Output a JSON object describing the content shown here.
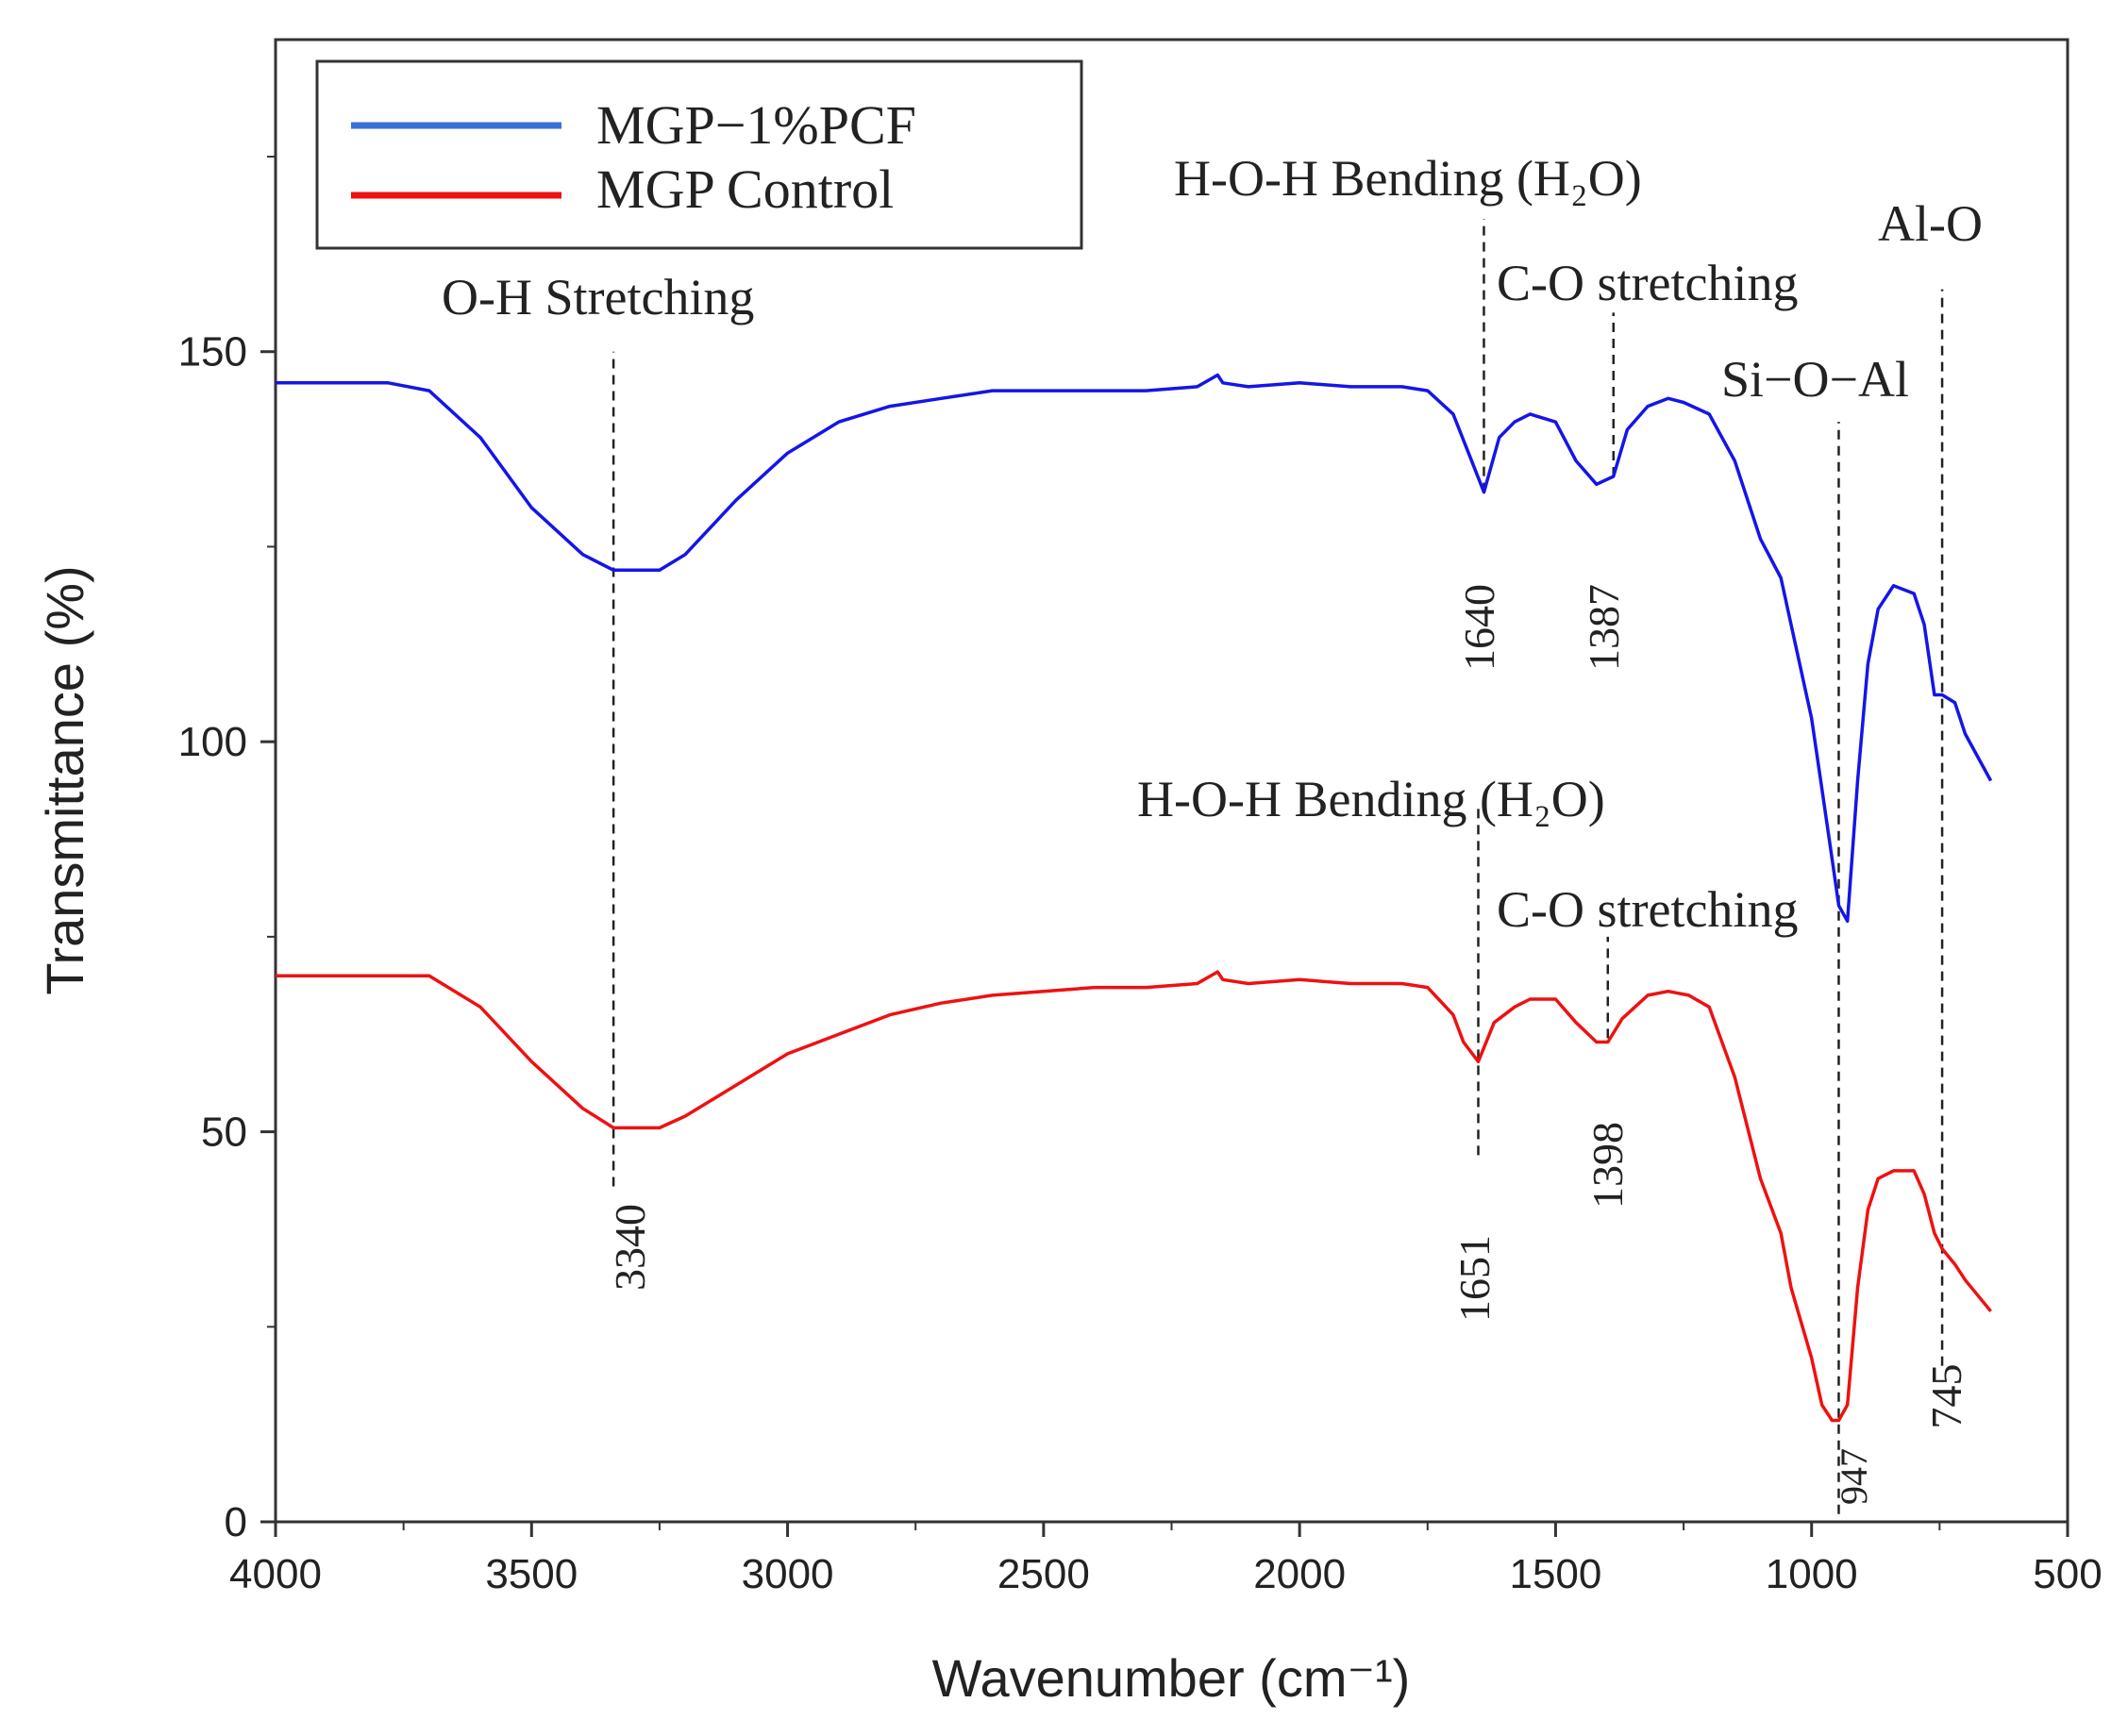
{
  "chart_data": {
    "type": "line",
    "xlabel": "Wavenumber (cm⁻¹)",
    "ylabel": "Transmittance (%)",
    "xlim": [
      4000,
      500
    ],
    "ylim": [
      0,
      190
    ],
    "x_ticks": [
      4000,
      3500,
      3000,
      2500,
      2000,
      1500,
      1000,
      500
    ],
    "y_ticks": [
      0,
      50,
      100,
      150
    ],
    "grid": false,
    "legend_position": "top-left",
    "colors": {
      "series1": "#1515e8",
      "series2": "#ee1111",
      "legend_line1": "#3a6fd8",
      "legend_line2": "#ee1111",
      "axis": "#333333"
    },
    "series": [
      {
        "name": "MGP−1%PCF",
        "x": [
          4000,
          3780,
          3700,
          3600,
          3500,
          3400,
          3340,
          3250,
          3200,
          3100,
          3000,
          2900,
          2800,
          2700,
          2600,
          2500,
          2400,
          2300,
          2200,
          2160,
          2150,
          2100,
          2000,
          1900,
          1800,
          1750,
          1700,
          1670,
          1640,
          1610,
          1580,
          1550,
          1500,
          1460,
          1420,
          1387,
          1360,
          1320,
          1280,
          1250,
          1200,
          1150,
          1100,
          1060,
          1040,
          1000,
          980,
          960,
          947,
          930,
          910,
          890,
          870,
          840,
          800,
          780,
          760,
          745,
          720,
          700,
          650
        ],
        "values": [
          146,
          146,
          145,
          139,
          130,
          124,
          122,
          122,
          124,
          131,
          137,
          141,
          143,
          144,
          145,
          145,
          145,
          145,
          145.5,
          147,
          146,
          145.5,
          146,
          145.5,
          145.5,
          145,
          142,
          137,
          132,
          139,
          141,
          142,
          141,
          136,
          133,
          134,
          140,
          143,
          144,
          143.5,
          142,
          136,
          126,
          121,
          115,
          103,
          94,
          85,
          79,
          77,
          95,
          110,
          117,
          120,
          119,
          115,
          106,
          106,
          105,
          101,
          95
        ]
      },
      {
        "name": "MGP Control",
        "x": [
          4000,
          3780,
          3700,
          3600,
          3500,
          3400,
          3340,
          3250,
          3200,
          3100,
          3000,
          2900,
          2800,
          2700,
          2600,
          2500,
          2400,
          2300,
          2200,
          2160,
          2150,
          2100,
          2000,
          1900,
          1800,
          1750,
          1700,
          1680,
          1651,
          1620,
          1580,
          1550,
          1500,
          1460,
          1420,
          1398,
          1370,
          1320,
          1280,
          1240,
          1200,
          1150,
          1100,
          1060,
          1040,
          1000,
          980,
          960,
          947,
          930,
          910,
          890,
          870,
          840,
          800,
          780,
          760,
          745,
          720,
          700,
          650
        ],
        "values": [
          70,
          70,
          70,
          66,
          59,
          53,
          50.5,
          50.5,
          52,
          56,
          60,
          62.5,
          65,
          66.5,
          67.5,
          68,
          68.5,
          68.5,
          69,
          70.5,
          69.5,
          69,
          69.5,
          69,
          69,
          68.5,
          65,
          61.5,
          59,
          64,
          66,
          67,
          67,
          64,
          61.5,
          61.5,
          64.5,
          67.5,
          68,
          67.5,
          66,
          57,
          44,
          37,
          30,
          21,
          15,
          13,
          13,
          15,
          30,
          40,
          44,
          45,
          45,
          42,
          37,
          35,
          33,
          31,
          27
        ]
      }
    ],
    "annotations": [
      {
        "id": "oh",
        "text": "O-H Stretching"
      },
      {
        "id": "hoh1",
        "text": "H-O-H Bending (H₂O)"
      },
      {
        "id": "co1",
        "text": "C-O stretching"
      },
      {
        "id": "sioal",
        "text": "Si−O−Al"
      },
      {
        "id": "alo",
        "text": "Al-O"
      },
      {
        "id": "hoh2",
        "text": "H-O-H Bending (H₂O)"
      },
      {
        "id": "co2",
        "text": "C-O stretching"
      }
    ],
    "peak_labels": [
      {
        "id": "p3340",
        "text": "3340",
        "x": 3340
      },
      {
        "id": "p1640",
        "text": "1640",
        "x": 1640
      },
      {
        "id": "p1387",
        "text": "1387",
        "x": 1387
      },
      {
        "id": "p1651",
        "text": "1651",
        "x": 1651
      },
      {
        "id": "p1398",
        "text": "1398",
        "x": 1398
      },
      {
        "id": "p947",
        "text": "947",
        "x": 947
      },
      {
        "id": "p745",
        "text": "745",
        "x": 745
      }
    ],
    "reference_lines": [
      {
        "id": "l3340",
        "x": 3340,
        "y_from": 43,
        "y_to": 150
      },
      {
        "id": "l1640",
        "x": 1640,
        "y_from": 132,
        "y_to": 167
      },
      {
        "id": "l1387",
        "x": 1387,
        "y_from": 134,
        "y_to": 155
      },
      {
        "id": "l1651",
        "x": 1651,
        "y_from": 47,
        "y_to": 92
      },
      {
        "id": "l1398",
        "x": 1398,
        "y_from": 62,
        "y_to": 75
      },
      {
        "id": "l947",
        "x": 947,
        "y_from": 1,
        "y_to": 141
      },
      {
        "id": "l745",
        "x": 745,
        "y_from": 20,
        "y_to": 158
      }
    ]
  }
}
